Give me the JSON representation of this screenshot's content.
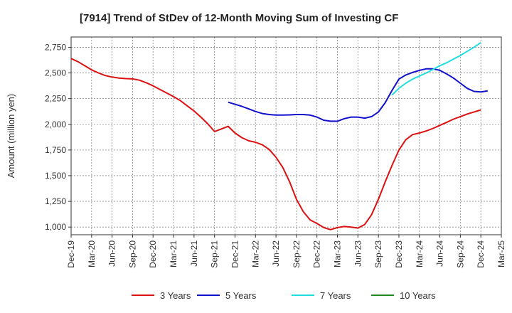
{
  "chart_data": {
    "type": "line",
    "title": "[7914]  Trend of StDev of 12-Month Moving Sum of Investing CF",
    "xlabel": "",
    "ylabel": "Amount (million yen)",
    "ylim": [
      925,
      2850
    ],
    "yticks": [
      1000,
      1250,
      1500,
      1750,
      2000,
      2250,
      2500,
      2750
    ],
    "ytick_labels": [
      "1,000",
      "1,250",
      "1,500",
      "1,750",
      "2,000",
      "2,250",
      "2,500",
      "2,750"
    ],
    "xtick_labels": [
      "Dec-19",
      "Mar-20",
      "Jun-20",
      "Sep-20",
      "Dec-20",
      "Mar-21",
      "Jun-21",
      "Sep-21",
      "Dec-21",
      "Mar-22",
      "Jun-22",
      "Sep-22",
      "Dec-22",
      "Mar-23",
      "Jun-23",
      "Sep-23",
      "Dec-23",
      "Mar-24",
      "Jun-24",
      "Sep-24",
      "Dec-24",
      "Mar-25"
    ],
    "grid": true,
    "legend_position": "bottom",
    "series": [
      {
        "name": "3 Years",
        "color": "#dd1111",
        "start": "Dec-19",
        "values": [
          2640,
          2610,
          2570,
          2530,
          2500,
          2475,
          2460,
          2450,
          2445,
          2442,
          2430,
          2405,
          2375,
          2340,
          2305,
          2270,
          2230,
          2180,
          2130,
          2070,
          2005,
          1930,
          1955,
          1980,
          1915,
          1870,
          1840,
          1825,
          1800,
          1755,
          1680,
          1580,
          1440,
          1270,
          1150,
          1070,
          1035,
          995,
          975,
          995,
          1005,
          1000,
          990,
          1025,
          1120,
          1270,
          1440,
          1600,
          1750,
          1850,
          1900,
          1915,
          1935,
          1960,
          1990,
          2020,
          2050,
          2075,
          2100,
          2120,
          2140
        ]
      },
      {
        "name": "5 Years",
        "color": "#1111cc",
        "start": "Nov-21",
        "values": [
          2215,
          2195,
          2175,
          2150,
          2125,
          2105,
          2095,
          2090,
          2090,
          2092,
          2095,
          2095,
          2090,
          2070,
          2040,
          2030,
          2030,
          2055,
          2070,
          2070,
          2060,
          2075,
          2120,
          2210,
          2330,
          2440,
          2480,
          2505,
          2525,
          2540,
          2540,
          2525,
          2490,
          2450,
          2400,
          2350,
          2320,
          2315,
          2325
        ]
      },
      {
        "name": "7 Years",
        "color": "#22dddd",
        "start": "Nov-23",
        "values": [
          2285,
          2350,
          2400,
          2440,
          2470,
          2500,
          2535,
          2570,
          2600,
          2635,
          2670,
          2710,
          2750,
          2795
        ]
      },
      {
        "name": "10 Years",
        "color": "#228822",
        "start": "Dec-24",
        "values": []
      }
    ]
  }
}
